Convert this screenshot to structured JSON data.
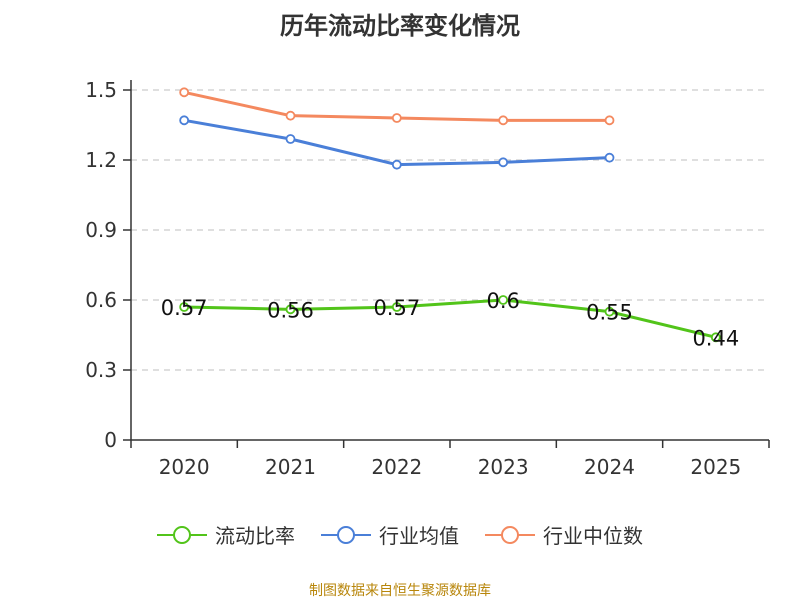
{
  "chart_data": {
    "type": "line",
    "title": "历年流动比率变化情况",
    "categories": [
      "2020",
      "2021",
      "2022",
      "2023",
      "2024",
      "2025"
    ],
    "ylim": [
      0,
      1.5
    ],
    "yticks": [
      "0",
      "0.3",
      "0.6",
      "0.9",
      "1.2",
      "1.5"
    ],
    "ytick_values": [
      0,
      0.3,
      0.6,
      0.9,
      1.2,
      1.5
    ],
    "grid": true,
    "legend_position": "bottom-center",
    "series": [
      {
        "name": "流动比率",
        "color": "#52c41a",
        "values": [
          0.57,
          0.56,
          0.57,
          0.6,
          0.55,
          0.44
        ],
        "labels": [
          "0.57",
          "0.56",
          "0.57",
          "0.6",
          "0.55",
          "0.44"
        ],
        "show_labels": true
      },
      {
        "name": "行业均值",
        "color": "#4a7fd8",
        "values": [
          1.37,
          1.29,
          1.18,
          1.19,
          1.21,
          null
        ],
        "show_labels": false
      },
      {
        "name": "行业中位数",
        "color": "#f4895f",
        "values": [
          1.49,
          1.39,
          1.38,
          1.37,
          1.37,
          null
        ],
        "show_labels": false
      }
    ]
  },
  "source_note": "制图数据来自恒生聚源数据库"
}
